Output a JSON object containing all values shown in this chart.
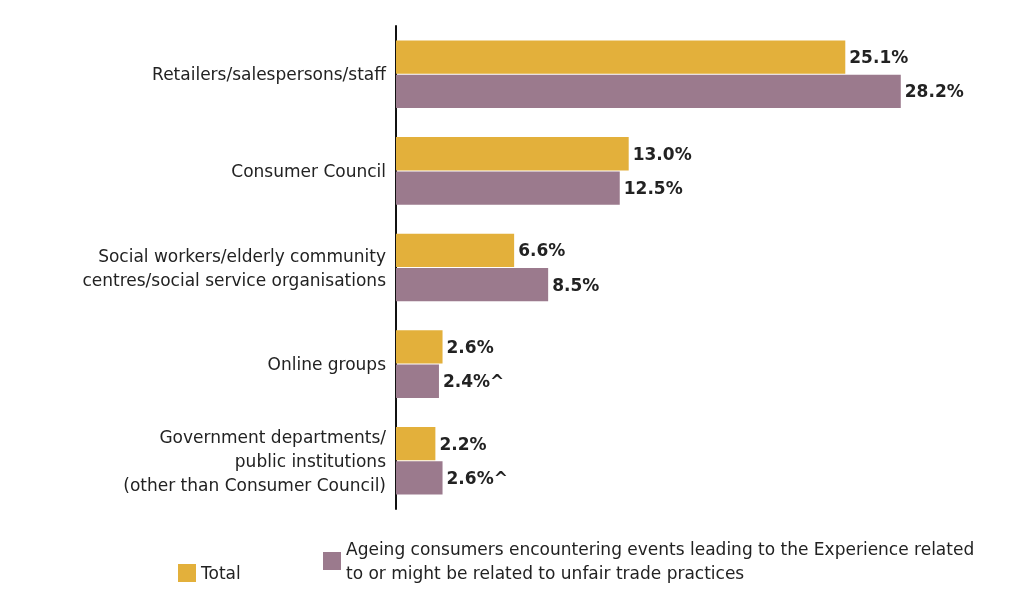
{
  "chart_data": {
    "type": "bar",
    "orientation": "horizontal",
    "categories": [
      "Retailers/salespersons/staff",
      "Consumer Council",
      "Social workers/elderly community\ncentres/social service organisations",
      "Online groups",
      "Government departments/\npublic institutions\n(other than Consumer Council)"
    ],
    "series": [
      {
        "name": "Total",
        "color": "#e3b03b",
        "values": [
          25.1,
          13.0,
          6.6,
          2.6,
          2.2
        ],
        "value_labels": [
          "25.1%",
          "13.0%",
          "6.6%",
          "2.6%",
          "2.2%"
        ]
      },
      {
        "name": "Ageing consumers encountering events leading to the Experience related to or might be related to unfair trade practices",
        "color": "#9b7a8d",
        "values": [
          28.2,
          12.5,
          8.5,
          2.4,
          2.6
        ],
        "value_labels": [
          "28.2%",
          "12.5%",
          "8.5%",
          "2.4%^",
          "2.6%^"
        ]
      }
    ],
    "legend": "bottom",
    "tick_labels": "y"
  }
}
